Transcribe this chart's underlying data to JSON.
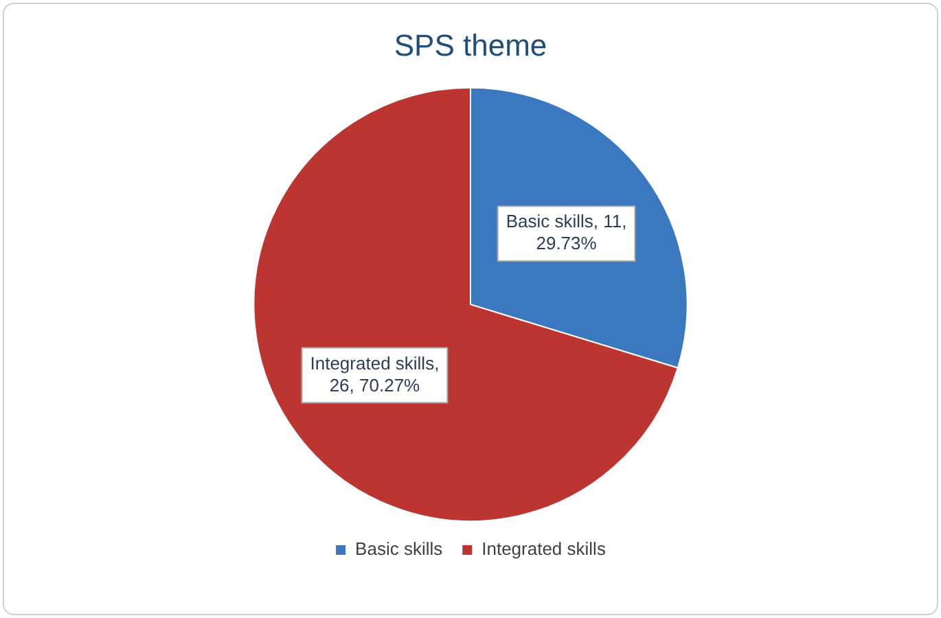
{
  "chart_data": {
    "type": "pie",
    "title": "SPS theme",
    "categories": [
      "Basic skills",
      "Integrated skills"
    ],
    "values": [
      11,
      26
    ],
    "colors": [
      "#3b78c0",
      "#bc3531"
    ],
    "value_labels": [
      "Basic skills, 11, 29.73%",
      "Integrated skills, 26, 70.27%"
    ],
    "legend": "bottom"
  }
}
